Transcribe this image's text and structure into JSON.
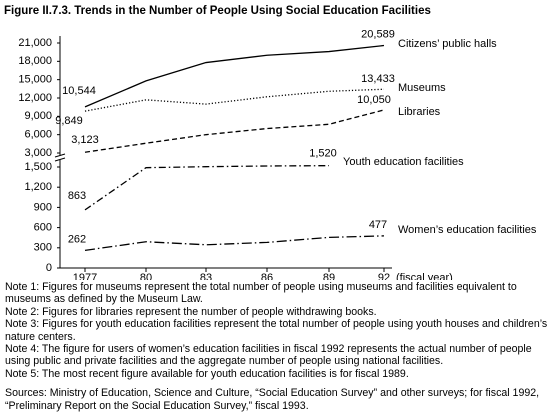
{
  "chart_data": [
    {
      "type": "line",
      "title": "Figure II.7.3. Trends in the Number of People Using Social Education Facilities",
      "ylim": [
        3000,
        21000
      ],
      "yticks": [
        {
          "value": 3000,
          "label": "3,000"
        },
        {
          "value": 6000,
          "label": "6,000"
        },
        {
          "value": 9000,
          "label": "9,000"
        },
        {
          "value": 12000,
          "label": "12,000"
        },
        {
          "value": 15000,
          "label": "15,000"
        },
        {
          "value": 18000,
          "label": "18,000"
        },
        {
          "value": 21000,
          "label": "21,000"
        }
      ],
      "series": [
        {
          "name": "Citizens’ public halls",
          "color": "#000000",
          "line_style": "solid",
          "values": [
            10544,
            14800,
            17800,
            19000,
            19600,
            20589
          ],
          "value_labels": [
            "10,544",
            null,
            null,
            null,
            null,
            "20,589"
          ]
        },
        {
          "name": "Museums",
          "color": "#000000",
          "line_style": "dotted",
          "values": [
            9849,
            11700,
            11000,
            12200,
            13100,
            13433
          ],
          "value_labels": [
            "9,849",
            null,
            null,
            null,
            null,
            "13,433"
          ]
        },
        {
          "name": "Libraries",
          "color": "#000000",
          "line_style": "dashed",
          "values": [
            3123,
            4600,
            6000,
            7000,
            7700,
            10050
          ],
          "value_labels": [
            "3,123",
            null,
            null,
            null,
            null,
            "10,050"
          ]
        }
      ]
    },
    {
      "type": "line",
      "categories": [
        "1977",
        "80",
        "83",
        "86",
        "89",
        "92"
      ],
      "xlabel": "(fiscal year)",
      "ylim": [
        0,
        1500
      ],
      "yticks": [
        0,
        300,
        600,
        900,
        {
          "value": 1200,
          "label": "1,200"
        },
        {
          "value": 1500,
          "label": "1,500"
        }
      ],
      "series": [
        {
          "name": "Youth education facilities",
          "color": "#000000",
          "line_style": "dashdot",
          "values": [
            863,
            1490,
            1505,
            1515,
            1520,
            null
          ],
          "value_labels": [
            "863",
            null,
            null,
            null,
            "1,520",
            null
          ]
        },
        {
          "name": "Women’s education facilities",
          "color": "#000000",
          "line_style": "longdashdot",
          "values": [
            262,
            390,
            345,
            380,
            455,
            477
          ],
          "value_labels": [
            "262",
            null,
            null,
            null,
            null,
            "477"
          ]
        }
      ]
    }
  ],
  "notes": [
    "Note 1: Figures for museums represent the total number of people using museums and facilities equivalent to museums as defined by the Museum Law.",
    "Note 2: Figures for libraries represent the number of people withdrawing books.",
    "Note 3: Figures for youth education facilities represent the total number of people using youth houses and children’s nature centers.",
    "Note 4: The figure for users of women’s education facilities in fiscal 1992 represents the actual number of people using public and private facilities and the aggregate number of people using national facilities.",
    "Note 5: The most recent figure available for youth education facilities is for fiscal 1989."
  ],
  "sources": "Sources: Ministry of Education, Science and Culture, “Social Education Survey” and other surveys; for fiscal 1992, “Preliminary Report on the Social Education Survey,” fiscal 1993."
}
